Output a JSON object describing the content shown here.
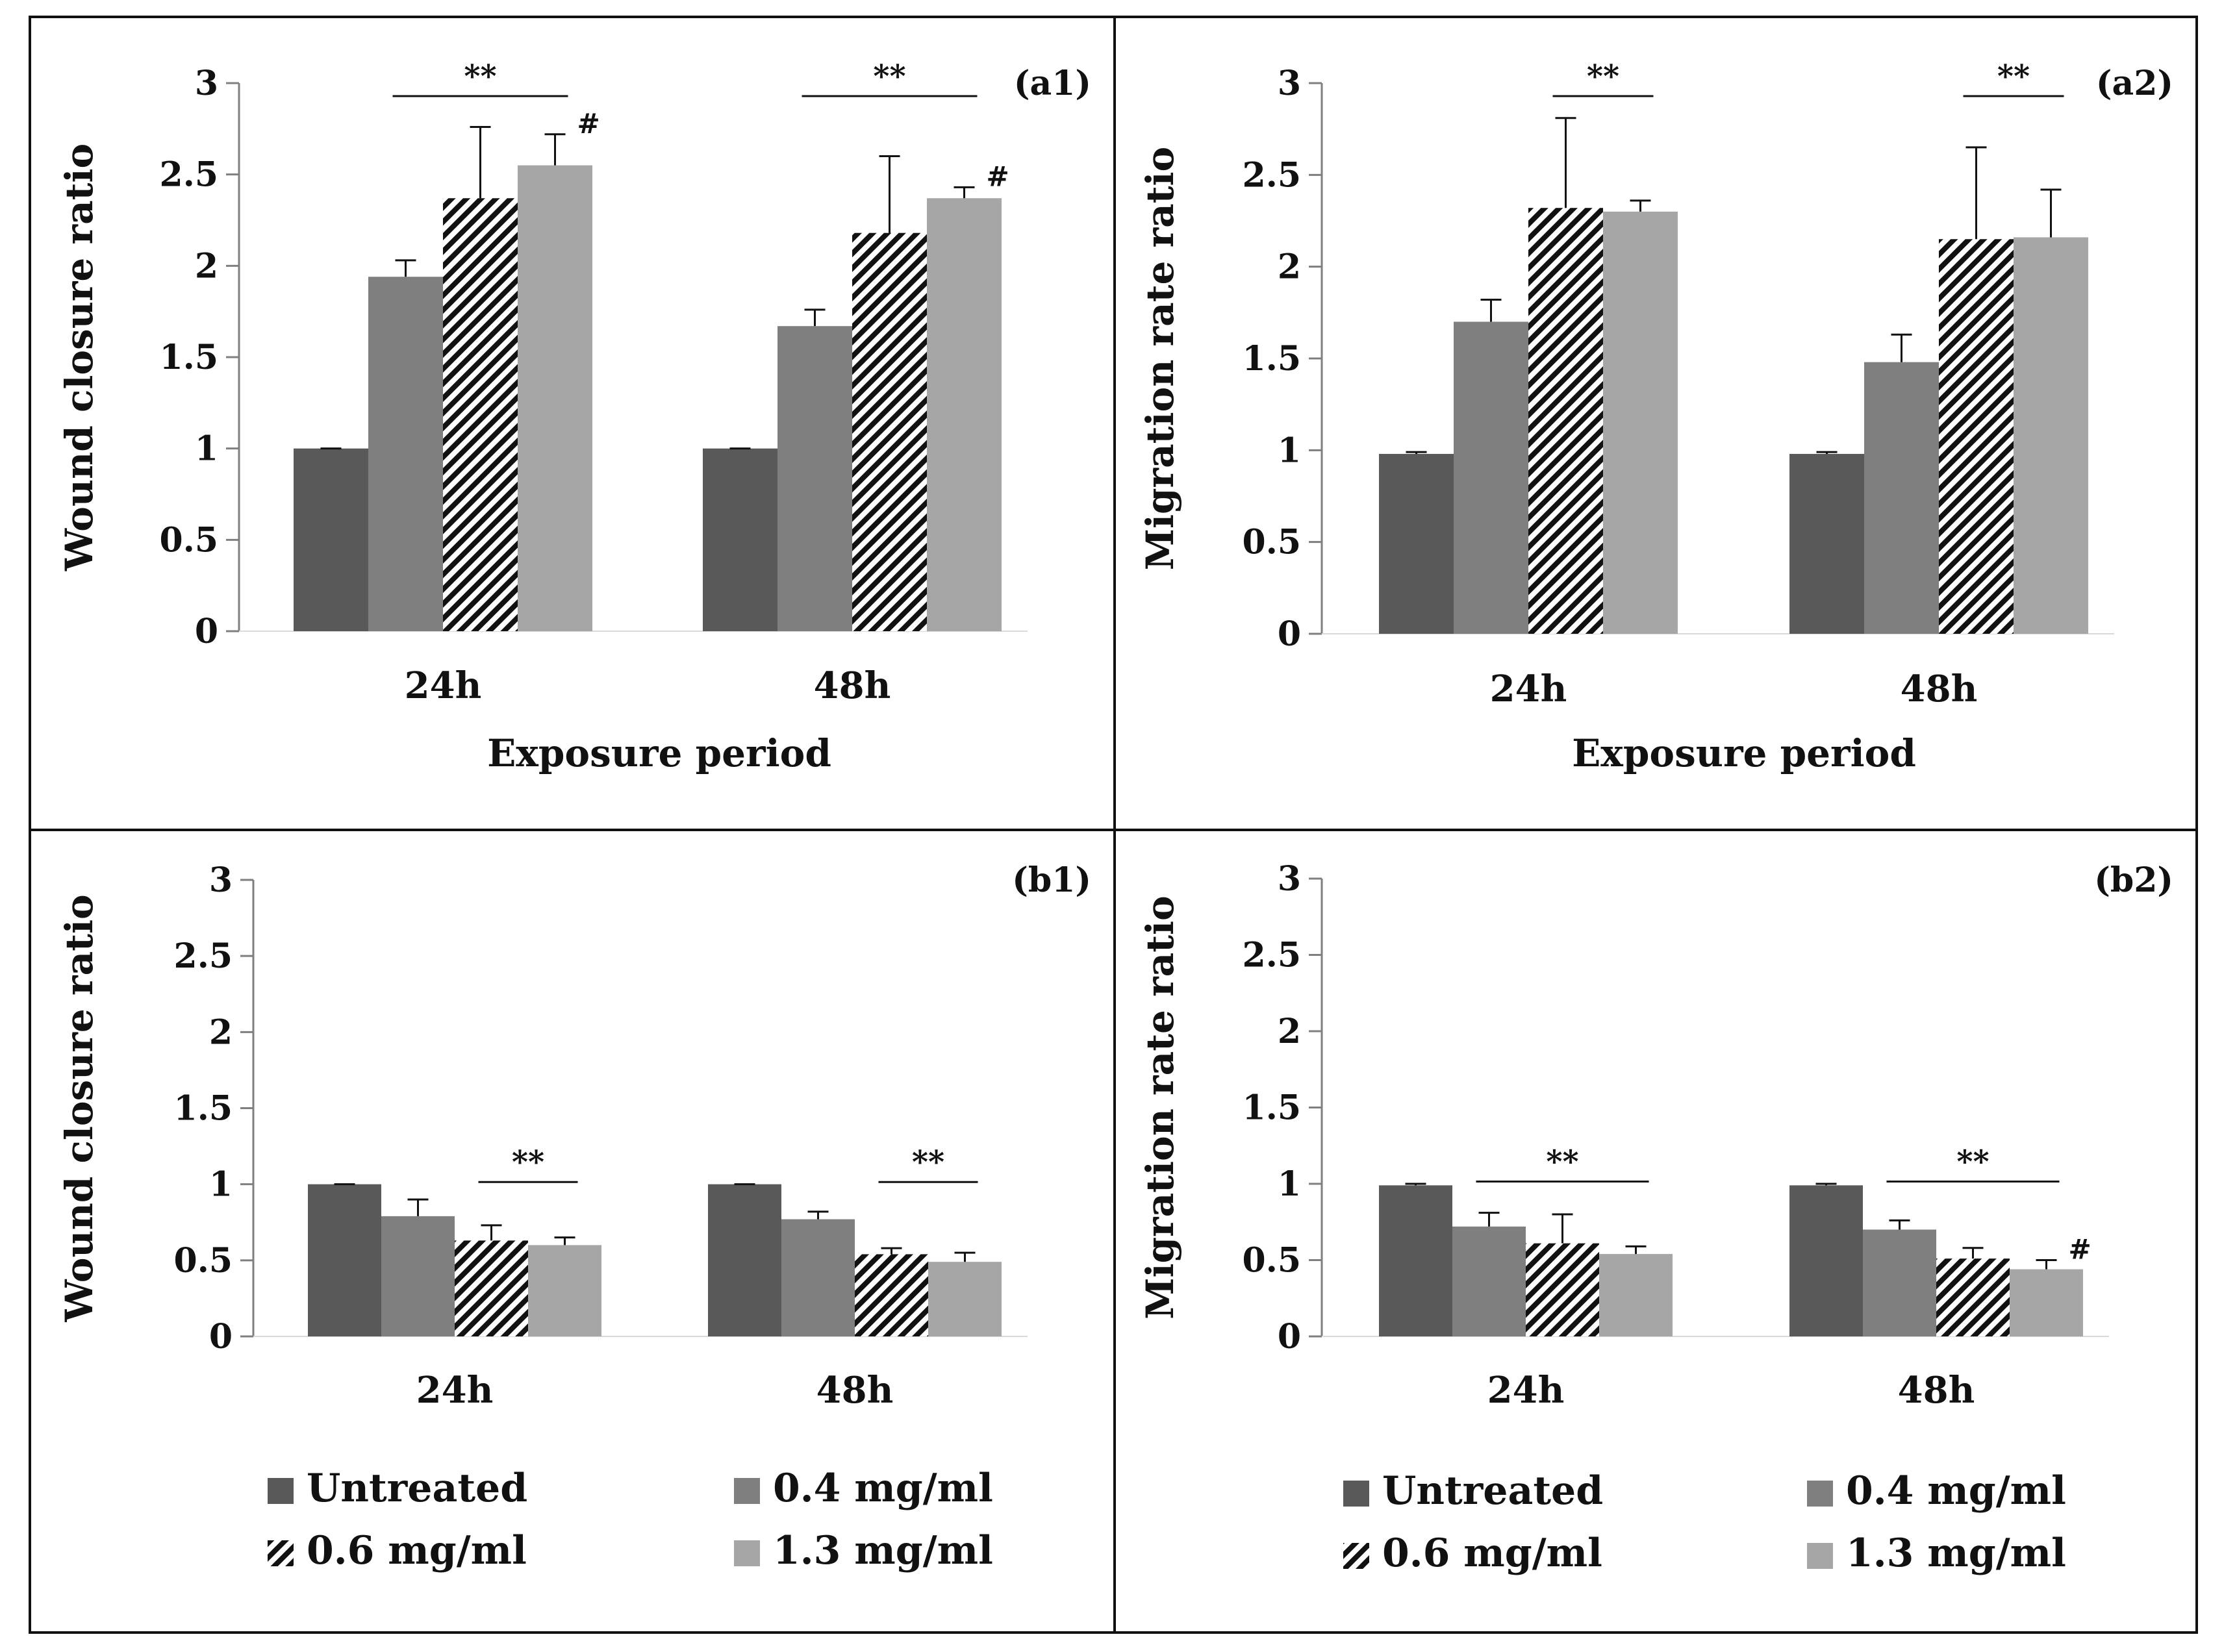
{
  "colors": {
    "untreated": "#595959",
    "c04": "#7f7f7f",
    "c06_stripe": "#111111",
    "c13": "#a6a6a6",
    "axis": "#7f7f7f",
    "text": "#111111",
    "border": "#111111"
  },
  "legend": {
    "items": [
      {
        "key": "untreated",
        "label": "Untreated",
        "pattern": "solid"
      },
      {
        "key": "c04",
        "label": "0.4 mg/ml",
        "pattern": "solid"
      },
      {
        "key": "c06",
        "label": "0.6 mg/ml",
        "pattern": "hatch"
      },
      {
        "key": "c13",
        "label": "1.3 mg/ml",
        "pattern": "solid"
      }
    ]
  },
  "chart_data": [
    {
      "panel": "(a1)",
      "type": "bar",
      "title": "",
      "xlabel": "Exposure period",
      "ylabel": "Wound closure ratio",
      "categories": [
        "24h",
        "48h"
      ],
      "yticks": [
        "0",
        "0.5",
        "1",
        "1.5",
        "2",
        "2.5",
        "3"
      ],
      "ylim": [
        0,
        3
      ],
      "series": [
        {
          "name": "Untreated",
          "values": [
            1.0,
            1.0
          ],
          "errors": [
            0.0,
            0.0
          ]
        },
        {
          "name": "0.4 mg/ml",
          "values": [
            1.94,
            1.67
          ],
          "errors": [
            0.09,
            0.09
          ]
        },
        {
          "name": "0.6 mg/ml",
          "values": [
            2.37,
            2.18
          ],
          "errors": [
            0.39,
            0.42
          ]
        },
        {
          "name": "1.3 mg/ml",
          "values": [
            2.55,
            2.37
          ],
          "errors": [
            0.17,
            0.06
          ]
        }
      ],
      "significance": [
        {
          "category": 0,
          "from": 1,
          "to": 3,
          "level": 3.0,
          "label": "**"
        },
        {
          "category": 1,
          "from": 1,
          "to": 3,
          "level": 3.0,
          "label": "**"
        }
      ],
      "hash_marks": [
        {
          "category": 0,
          "series": 3,
          "label": "#"
        },
        {
          "category": 1,
          "series": 3,
          "label": "#"
        }
      ]
    },
    {
      "panel": "(a2)",
      "type": "bar",
      "title": "",
      "xlabel": "Exposure period",
      "ylabel": "Migration rate ratio",
      "categories": [
        "24h",
        "48h"
      ],
      "yticks": [
        "0",
        "0.5",
        "1",
        "1.5",
        "2",
        "2.5",
        "3"
      ],
      "ylim": [
        0,
        3
      ],
      "series": [
        {
          "name": "Untreated",
          "values": [
            0.98,
            0.98
          ],
          "errors": [
            0.01,
            0.01
          ]
        },
        {
          "name": "0.4 mg/ml",
          "values": [
            1.7,
            1.48
          ],
          "errors": [
            0.12,
            0.15
          ]
        },
        {
          "name": "0.6 mg/ml",
          "values": [
            2.32,
            2.15
          ],
          "errors": [
            0.49,
            0.5
          ]
        },
        {
          "name": "1.3 mg/ml",
          "values": [
            2.3,
            2.16
          ],
          "errors": [
            0.06,
            0.26
          ]
        }
      ],
      "significance": [
        {
          "category": 0,
          "from": 2,
          "to": 3,
          "level": 3.0,
          "label": "**"
        },
        {
          "category": 1,
          "from": 2,
          "to": 3,
          "level": 3.0,
          "label": "**"
        }
      ],
      "hash_marks": []
    },
    {
      "panel": "(b1)",
      "type": "bar",
      "title": "",
      "xlabel": "",
      "ylabel": "Wound closure ratio",
      "categories": [
        "24h",
        "48h"
      ],
      "yticks": [
        "0",
        "0.5",
        "1",
        "1.5",
        "2",
        "2.5",
        "3"
      ],
      "ylim": [
        0,
        3
      ],
      "series": [
        {
          "name": "Untreated",
          "values": [
            1.0,
            1.0
          ],
          "errors": [
            0.0,
            0.0
          ]
        },
        {
          "name": "0.4 mg/ml",
          "values": [
            0.79,
            0.77
          ],
          "errors": [
            0.11,
            0.05
          ]
        },
        {
          "name": "0.6 mg/ml",
          "values": [
            0.63,
            0.54
          ],
          "errors": [
            0.1,
            0.04
          ]
        },
        {
          "name": "1.3 mg/ml",
          "values": [
            0.6,
            0.49
          ],
          "errors": [
            0.05,
            0.06
          ]
        }
      ],
      "significance": [
        {
          "category": 0,
          "from": 2,
          "to": 3,
          "level": 1.1,
          "label": "**"
        },
        {
          "category": 1,
          "from": 2,
          "to": 3,
          "level": 1.1,
          "label": "**"
        }
      ],
      "hash_marks": []
    },
    {
      "panel": "(b2)",
      "type": "bar",
      "title": "",
      "xlabel": "",
      "ylabel": "Migration rate ratio",
      "categories": [
        "24h",
        "48h"
      ],
      "yticks": [
        "0",
        "0.5",
        "1",
        "1.5",
        "2",
        "2.5",
        "3"
      ],
      "ylim": [
        0,
        3
      ],
      "series": [
        {
          "name": "Untreated",
          "values": [
            0.99,
            0.99
          ],
          "errors": [
            0.01,
            0.01
          ]
        },
        {
          "name": "0.4 mg/ml",
          "values": [
            0.72,
            0.7
          ],
          "errors": [
            0.09,
            0.06
          ]
        },
        {
          "name": "0.6 mg/ml",
          "values": [
            0.61,
            0.51
          ],
          "errors": [
            0.19,
            0.07
          ]
        },
        {
          "name": "1.3 mg/ml",
          "values": [
            0.54,
            0.44
          ],
          "errors": [
            0.05,
            0.06
          ]
        }
      ],
      "significance": [
        {
          "category": 0,
          "from": 1,
          "to": 3,
          "level": 1.1,
          "label": "**"
        },
        {
          "category": 1,
          "from": 1,
          "to": 3,
          "level": 1.1,
          "label": "**"
        }
      ],
      "hash_marks": [
        {
          "category": 1,
          "series": 3,
          "label": "#"
        }
      ]
    }
  ]
}
